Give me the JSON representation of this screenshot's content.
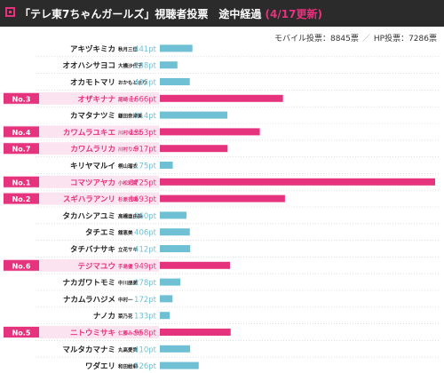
{
  "header": {
    "title": "「テレ東7ちゃんガールズ」視聴者投票　途中経過",
    "subtitle": "(4/17更新)"
  },
  "totals": {
    "mobile": "モバイル投票：8845票",
    "hp": "HP投票：7286票"
  },
  "colors": {
    "header_bg": "#2b2b2b",
    "accent_pink": "#e5337e",
    "highlight_bg": "#fbe3ef",
    "bar_pink": "#e5337e",
    "bar_blue": "#6fc0d4"
  },
  "chart_data": {
    "type": "bar",
    "orientation": "horizontal",
    "unit": "pt",
    "xlim": [
      0,
      3725
    ],
    "rows": [
      {
        "name": "アキヅキミカ",
        "fullname": "秋月三佳",
        "value": 441,
        "rank": ""
      },
      {
        "name": "オオハシサヨコ",
        "fullname": "大橋沙代子",
        "value": 238,
        "rank": ""
      },
      {
        "name": "オカモトマリ",
        "fullname": "おかもとまり",
        "value": 405,
        "rank": ""
      },
      {
        "name": "オザキナナ",
        "fullname": "尾崎ナナ",
        "value": 1666,
        "rank": "No.3"
      },
      {
        "name": "カマタナツミ",
        "fullname": "鎌田奈津美",
        "value": 914,
        "rank": ""
      },
      {
        "name": "カワムラユキエ",
        "fullname": "川村ゆきえ",
        "value": 1353,
        "rank": "No.4"
      },
      {
        "name": "カワムラリカ",
        "fullname": "川村りか",
        "value": 917,
        "rank": "No.7"
      },
      {
        "name": "キリヤマルイ",
        "fullname": "桐山瑠衣",
        "value": 175,
        "rank": ""
      },
      {
        "name": "コマツアヤカ",
        "fullname": "小松彩夏",
        "value": 3725,
        "rank": "No.1"
      },
      {
        "name": "スギハラアンリ",
        "fullname": "杉原杏璃",
        "value": 1693,
        "rank": "No.2"
      },
      {
        "name": "タカハシアユミ",
        "fullname": "高橋亜由美",
        "value": 360,
        "rank": ""
      },
      {
        "name": "タチエミ",
        "fullname": "舘恵美",
        "value": 406,
        "rank": ""
      },
      {
        "name": "タチバナサキ",
        "fullname": "立花サキ",
        "value": 412,
        "rank": ""
      },
      {
        "name": "テジマユウ",
        "fullname": "手島優",
        "value": 949,
        "rank": "No.6"
      },
      {
        "name": "ナカガワトモミ",
        "fullname": "中川朋美",
        "value": 278,
        "rank": ""
      },
      {
        "name": "ナカムラハジメ",
        "fullname": "中村一",
        "value": 172,
        "rank": ""
      },
      {
        "name": "ナノカ",
        "fullname": "菜乃花",
        "value": 133,
        "rank": ""
      },
      {
        "name": "ニトウミサキ",
        "fullname": "仁藤みさき",
        "value": 958,
        "rank": "No.5"
      },
      {
        "name": "マルタカマナミ",
        "fullname": "丸高愛実",
        "value": 410,
        "rank": ""
      },
      {
        "name": "ワダエリ",
        "fullname": "和田絵莉",
        "value": 526,
        "rank": ""
      }
    ]
  }
}
